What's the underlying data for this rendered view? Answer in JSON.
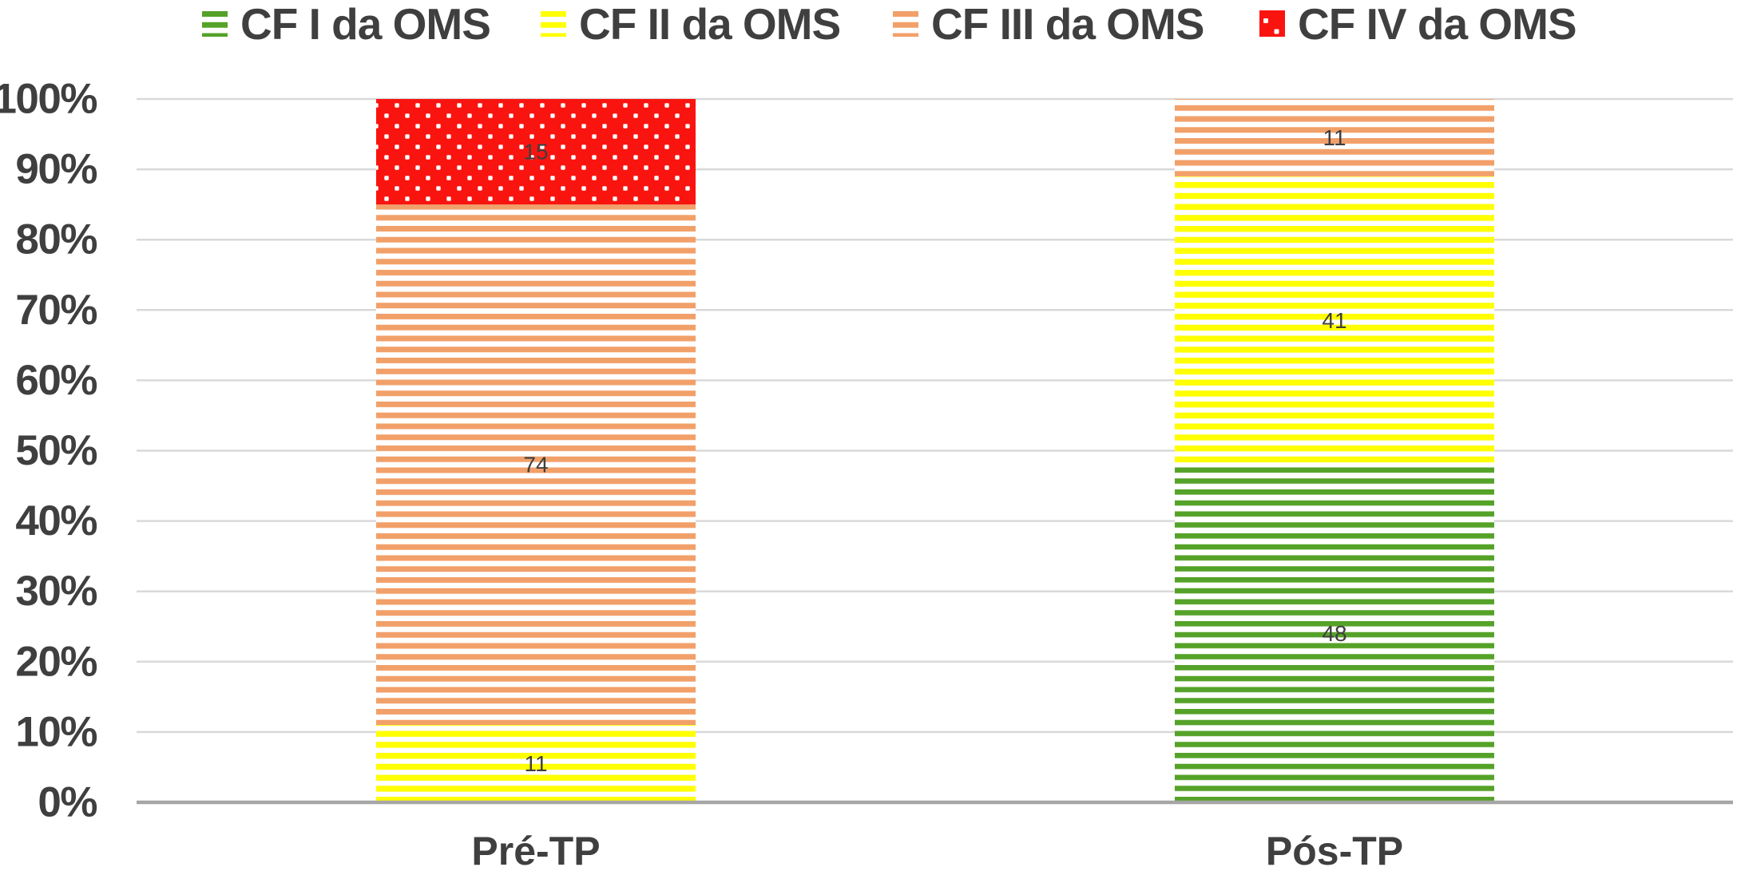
{
  "chart_data": {
    "type": "bar",
    "variant": "stacked-100-percent-column",
    "title": "",
    "categories": [
      "Pré-TP",
      "Pós-TP"
    ],
    "series": [
      {
        "name": "CF I da OMS",
        "values": [
          0,
          48
        ],
        "color": "#55a228",
        "pattern": "horizontal-lines"
      },
      {
        "name": "CF II da OMS",
        "values": [
          11,
          41
        ],
        "color": "#ffff00",
        "pattern": "horizontal-lines"
      },
      {
        "name": "CF III da OMS",
        "values": [
          74,
          11
        ],
        "color": "#f2a069",
        "pattern": "horizontal-lines"
      },
      {
        "name": "CF IV da OMS",
        "values": [
          15,
          0
        ],
        "color": "#fa1410",
        "pattern": "white-dots-on-solid"
      }
    ],
    "data_labels": {
      "shown": true,
      "values": [
        [
          null,
          11,
          74,
          15
        ],
        [
          48,
          41,
          11,
          null
        ]
      ]
    },
    "xlabel": "",
    "ylabel": "",
    "ylim": [
      0,
      100
    ],
    "y_tick_labels": [
      "0%",
      "10%",
      "20%",
      "30%",
      "40%",
      "50%",
      "60%",
      "70%",
      "80%",
      "90%",
      "100%"
    ],
    "grid": true,
    "legend_position": "top"
  },
  "colors": {
    "text": "#3f3f3f",
    "data_label_text": "#3f3f3f",
    "gridline": "#d9d9d9",
    "axis_line": "#a6a6a6",
    "background": "#ffffff",
    "pattern_background": "#ffffff",
    "dot_color": "#ffffff"
  }
}
